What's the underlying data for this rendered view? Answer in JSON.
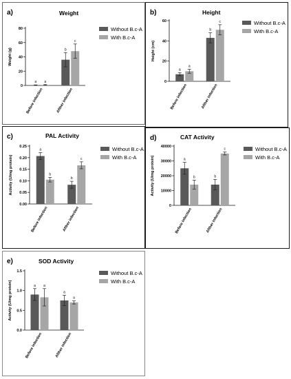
{
  "colors": {
    "without": "#595959",
    "with": "#a6a6a6",
    "axis": "#111111",
    "border": "#1a1a1a"
  },
  "chart_data": [
    {
      "id": "a",
      "panel_label": "a)",
      "type": "bar",
      "title": "Weight",
      "ylabel": "Weight (g)",
      "ylim": [
        0,
        80
      ],
      "yticks": [
        0,
        20,
        40,
        60,
        80
      ],
      "categories": [
        "Before infection",
        "Afther infection"
      ],
      "series": [
        {
          "name": "Without B.c-A",
          "values": [
            0.5,
            36
          ],
          "errors": [
            0.3,
            10
          ],
          "letters": [
            "a",
            "b"
          ]
        },
        {
          "name": "With B.c-A",
          "values": [
            0.8,
            48
          ],
          "errors": [
            0.4,
            10
          ],
          "letters": [
            "a",
            "c"
          ]
        }
      ],
      "legend": "right"
    },
    {
      "id": "b",
      "panel_label": "b)",
      "type": "bar",
      "title": "Height",
      "ylabel": "Height (cm)",
      "ylim": [
        0,
        60
      ],
      "yticks": [
        0,
        20,
        40,
        60
      ],
      "categories": [
        "Before infection",
        "Afther infection"
      ],
      "series": [
        {
          "name": "Without B.c-A",
          "values": [
            7,
            43
          ],
          "errors": [
            1.5,
            5
          ],
          "letters": [
            "a",
            "b"
          ]
        },
        {
          "name": "With B.c-A",
          "values": [
            10,
            51
          ],
          "errors": [
            2,
            5
          ],
          "letters": [
            "a",
            "c"
          ]
        }
      ],
      "legend": "right"
    },
    {
      "id": "c",
      "panel_label": "c)",
      "type": "bar",
      "title": "PAL Activity",
      "ylabel": "Activity (U/mg protein)",
      "ylim": [
        0,
        0.25
      ],
      "yticks": [
        "0.00",
        "0.05",
        "0.10",
        "0.15",
        "0.20",
        "0.25"
      ],
      "categories": [
        "Before infection",
        "Afther infection"
      ],
      "series": [
        {
          "name": "Without B.c-A",
          "values": [
            0.207,
            0.083
          ],
          "errors": [
            0.015,
            0.015
          ],
          "letters": [
            "a",
            "b"
          ]
        },
        {
          "name": "With B.c-A",
          "values": [
            0.105,
            0.167
          ],
          "errors": [
            0.01,
            0.015
          ],
          "letters": [
            "b",
            "c"
          ]
        }
      ],
      "legend": "right"
    },
    {
      "id": "d",
      "panel_label": "d)",
      "type": "bar",
      "title": "CAT Activity",
      "ylabel": "Activity (U/mg protein)",
      "ylim": [
        0,
        40000
      ],
      "yticks": [
        0,
        10000,
        20000,
        30000,
        40000
      ],
      "categories": [
        "Before infection",
        "Afther infection"
      ],
      "series": [
        {
          "name": "Without B.c-A",
          "values": [
            25000,
            14000
          ],
          "errors": [
            4000,
            3500
          ],
          "letters": [
            "a",
            "b"
          ]
        },
        {
          "name": "With B.c-A",
          "values": [
            14000,
            35000
          ],
          "errors": [
            3000,
            1000
          ],
          "letters": [
            "b",
            "c"
          ]
        }
      ],
      "legend": "right"
    },
    {
      "id": "e",
      "panel_label": "e)",
      "type": "bar",
      "title": "SOD Activity",
      "ylabel": "Activity (U/mg protein)",
      "ylim": [
        0,
        1.5
      ],
      "yticks": [
        "0.0",
        "0.5",
        "1.0",
        "1.5"
      ],
      "categories": [
        "Before infection",
        "Afther infection"
      ],
      "series": [
        {
          "name": "Without B.c-A",
          "values": [
            0.9,
            0.75
          ],
          "errors": [
            0.15,
            0.13
          ],
          "letters": [
            "a",
            "a"
          ]
        },
        {
          "name": "With B.c-A",
          "values": [
            0.83,
            0.7
          ],
          "errors": [
            0.22,
            0.04
          ],
          "letters": [
            "a",
            "a"
          ]
        }
      ],
      "legend": "right"
    }
  ]
}
